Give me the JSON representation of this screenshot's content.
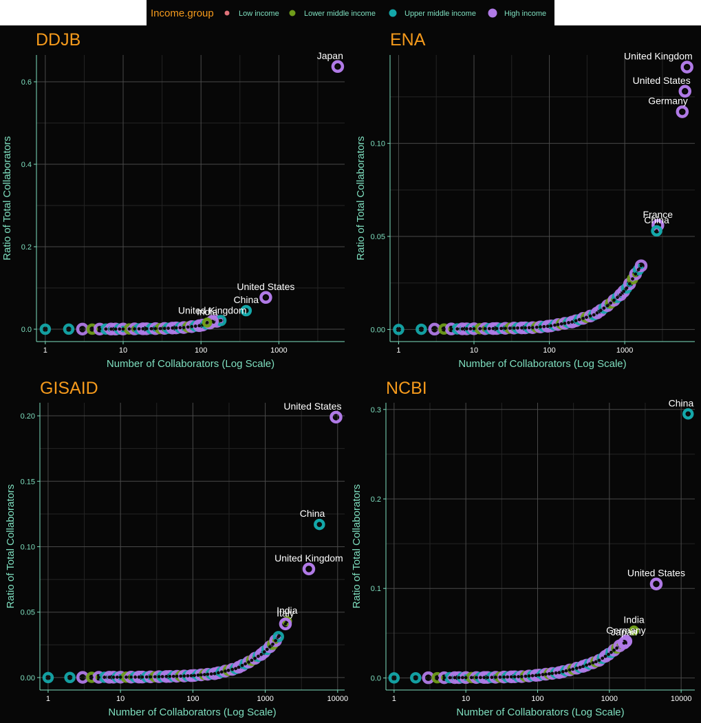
{
  "legend": {
    "title": "Income.group",
    "items": [
      {
        "label": "Low income",
        "color": "#e0737a",
        "size": 5
      },
      {
        "label": "Lower middle income",
        "color": "#6f9c1a",
        "size": 7
      },
      {
        "label": "Upper middle income",
        "color": "#14a7a9",
        "size": 9
      },
      {
        "label": "High income",
        "color": "#b07ae6",
        "size": 11
      }
    ]
  },
  "colors": {
    "title": "#f59a1c",
    "axis": "#7fe0c0",
    "grid_major": "#4a4a4a",
    "grid_minor": "#242424",
    "label": "#ffffff",
    "background": "#070707"
  },
  "chart_data": [
    {
      "type": "scatter",
      "title": "DDJB",
      "xlabel": "Number of Collaborators (Log Scale)",
      "ylabel": "Ratio of Total Collaborators",
      "x_scale": "log",
      "xlim": [
        0.77,
        7000
      ],
      "ylim": [
        -0.03,
        0.665
      ],
      "xticks": [
        1,
        10,
        100,
        1000
      ],
      "yticks": [
        0,
        0.2,
        0.4,
        0.6
      ],
      "ytick_labels": [
        "0.0",
        "0.2",
        "0.4",
        "0.6"
      ],
      "labeled_points": [
        {
          "name": "Japan",
          "x": 5700,
          "y": 0.637,
          "group": "High income"
        },
        {
          "name": "United States",
          "x": 680,
          "y": 0.077,
          "group": "High income"
        },
        {
          "name": "China",
          "x": 380,
          "y": 0.045,
          "group": "Upper middle income"
        },
        {
          "name": "United Kingdom",
          "x": 140,
          "y": 0.019,
          "group": "High income"
        },
        {
          "name": "India",
          "x": 120,
          "y": 0.016,
          "group": "Lower middle income"
        }
      ],
      "curve": [
        [
          1,
          0.0
        ],
        [
          10,
          0.0004
        ],
        [
          30,
          0.0015
        ],
        [
          60,
          0.004
        ],
        [
          100,
          0.009
        ],
        [
          150,
          0.018
        ],
        [
          180,
          0.021
        ]
      ],
      "curve_end_x": 180
    },
    {
      "type": "scatter",
      "title": "ENA",
      "xlabel": "Number of Collaborators (Log Scale)",
      "ylabel": "Ratio of Total Collaborators",
      "x_scale": "log",
      "xlim": [
        0.77,
        8500
      ],
      "ylim": [
        -0.0065,
        0.1475
      ],
      "xticks": [
        1,
        10,
        100,
        1000
      ],
      "yticks": [
        0,
        0.05,
        0.1
      ],
      "ytick_labels": [
        "0.00",
        "0.05",
        "0.10"
      ],
      "labeled_points": [
        {
          "name": "United Kingdom",
          "x": 6700,
          "y": 0.141,
          "group": "High income"
        },
        {
          "name": "United States",
          "x": 6300,
          "y": 0.128,
          "group": "High income"
        },
        {
          "name": "Germany",
          "x": 5800,
          "y": 0.117,
          "group": "High income"
        },
        {
          "name": "France",
          "x": 2750,
          "y": 0.056,
          "group": "High income"
        },
        {
          "name": "China",
          "x": 2650,
          "y": 0.053,
          "group": "Upper middle income"
        }
      ],
      "curve": [
        [
          1,
          0.0
        ],
        [
          20,
          0.0005
        ],
        [
          60,
          0.001
        ],
        [
          100,
          0.0018
        ],
        [
          200,
          0.004
        ],
        [
          400,
          0.008
        ],
        [
          600,
          0.013
        ],
        [
          900,
          0.019
        ],
        [
          1100,
          0.023
        ],
        [
          1400,
          0.03
        ],
        [
          1700,
          0.035
        ]
      ],
      "curve_end_x": 1700
    },
    {
      "type": "scatter",
      "title": "GISAID",
      "xlabel": "Number of Collaborators (Log Scale)",
      "ylabel": "Ratio of Total Collaborators",
      "x_scale": "log",
      "xlim": [
        0.77,
        12500
      ],
      "ylim": [
        -0.0095,
        0.21
      ],
      "xticks": [
        1,
        10,
        100,
        1000,
        10000
      ],
      "yticks": [
        0,
        0.05,
        0.1,
        0.15,
        0.2
      ],
      "ytick_labels": [
        "0.00",
        "0.05",
        "0.10",
        "0.15",
        "0.20"
      ],
      "labeled_points": [
        {
          "name": "United States",
          "x": 9500,
          "y": 0.199,
          "group": "High income"
        },
        {
          "name": "China",
          "x": 5600,
          "y": 0.117,
          "group": "Upper middle income"
        },
        {
          "name": "United Kingdom",
          "x": 4000,
          "y": 0.083,
          "group": "High income"
        },
        {
          "name": "India",
          "x": 2000,
          "y": 0.043,
          "group": "Lower middle income"
        },
        {
          "name": "Italy",
          "x": 1900,
          "y": 0.041,
          "group": "High income"
        }
      ],
      "curve": [
        [
          1,
          0.0
        ],
        [
          20,
          0.0004
        ],
        [
          60,
          0.001
        ],
        [
          100,
          0.0015
        ],
        [
          200,
          0.003
        ],
        [
          400,
          0.007
        ],
        [
          600,
          0.012
        ],
        [
          900,
          0.018
        ],
        [
          1300,
          0.026
        ],
        [
          1600,
          0.033
        ]
      ],
      "curve_end_x": 1600
    },
    {
      "type": "scatter",
      "title": "NCBI",
      "xlabel": "Number of Collaborators (Log Scale)",
      "ylabel": "Ratio of Total Collaborators",
      "x_scale": "log",
      "xlim": [
        0.77,
        15500
      ],
      "ylim": [
        -0.0135,
        0.3075
      ],
      "xticks": [
        1,
        10,
        100,
        1000,
        10000
      ],
      "yticks": [
        0,
        0.1,
        0.2,
        0.3
      ],
      "ytick_labels": [
        "0.0",
        "0.1",
        "0.2",
        "0.3"
      ],
      "labeled_points": [
        {
          "name": "China",
          "x": 12500,
          "y": 0.295,
          "group": "Upper middle income"
        },
        {
          "name": "United States",
          "x": 4500,
          "y": 0.105,
          "group": "High income"
        },
        {
          "name": "India",
          "x": 2200,
          "y": 0.053,
          "group": "Lower middle income"
        },
        {
          "name": "Germany",
          "x": 1700,
          "y": 0.041,
          "group": "High income"
        },
        {
          "name": "Japan",
          "x": 1600,
          "y": 0.039,
          "group": "High income"
        }
      ],
      "curve": [
        [
          1,
          0.0
        ],
        [
          20,
          0.0005
        ],
        [
          60,
          0.0015
        ],
        [
          100,
          0.003
        ],
        [
          200,
          0.006
        ],
        [
          400,
          0.012
        ],
        [
          700,
          0.019
        ],
        [
          1000,
          0.027
        ],
        [
          1300,
          0.034
        ],
        [
          1500,
          0.038
        ]
      ],
      "curve_end_x": 1500
    }
  ]
}
